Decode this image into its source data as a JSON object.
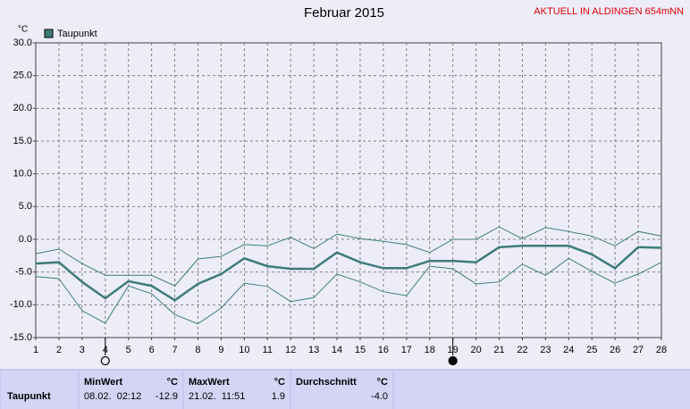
{
  "chart_data": {
    "type": "line",
    "title": "Februar 2015",
    "subtitle": "AKTUELL IN ALDINGEN 654mNN",
    "y_label": "°C",
    "x": [
      1,
      2,
      3,
      4,
      5,
      6,
      7,
      8,
      9,
      10,
      11,
      12,
      13,
      14,
      15,
      16,
      17,
      18,
      19,
      20,
      21,
      22,
      23,
      24,
      25,
      26,
      27,
      28
    ],
    "xlim": [
      1,
      28
    ],
    "xticks": [
      1,
      2,
      3,
      4,
      5,
      6,
      7,
      8,
      9,
      10,
      11,
      12,
      13,
      14,
      15,
      16,
      17,
      18,
      19,
      20,
      21,
      22,
      23,
      24,
      25,
      26,
      27,
      28
    ],
    "ylim": [
      -15,
      30
    ],
    "yticks": [
      {
        "value": -15,
        "label": "-15.0"
      },
      {
        "value": -10,
        "label": "-10.0"
      },
      {
        "value": -5,
        "label": "-5.0"
      },
      {
        "value": 0,
        "label": "0.0"
      },
      {
        "value": 5,
        "label": "5.0"
      },
      {
        "value": 10,
        "label": "10.0"
      },
      {
        "value": 15,
        "label": "15.0"
      },
      {
        "value": 20,
        "label": "20.0"
      },
      {
        "value": 25,
        "label": "25.0"
      },
      {
        "value": 30,
        "label": "30.0"
      }
    ],
    "grid": true,
    "series": [
      {
        "name": "Taupunkt",
        "color": "#3f7b7b",
        "width": 2.5,
        "values": [
          -3.7,
          -3.5,
          -6.5,
          -9.0,
          -6.4,
          -7.1,
          -9.3,
          -6.8,
          -5.3,
          -2.9,
          -4.1,
          -4.5,
          -4.5,
          -2.0,
          -3.5,
          -4.4,
          -4.4,
          -3.3,
          -3.3,
          -3.5,
          -1.2,
          -1.0,
          -1.0,
          -1.0,
          -2.3,
          -4.4,
          -1.2,
          -1.3
        ]
      },
      {
        "color": "#3f7b7b",
        "width": 1,
        "values": [
          -2.2,
          -1.5,
          -3.7,
          -5.5,
          -5.5,
          -5.5,
          -7.1,
          -3.0,
          -2.6,
          -0.8,
          -1.0,
          0.3,
          -1.4,
          0.8,
          0.1,
          -0.3,
          -0.8,
          -2.0,
          0.0,
          0.0,
          1.9,
          0.1,
          1.8,
          1.2,
          0.5,
          -1.0,
          1.2,
          0.5
        ]
      },
      {
        "color": "#3f7b7b",
        "width": 1,
        "values": [
          -5.7,
          -6.0,
          -10.9,
          -12.8,
          -7.1,
          -8.3,
          -11.5,
          -12.9,
          -10.5,
          -6.7,
          -7.2,
          -9.5,
          -8.9,
          -5.3,
          -6.5,
          -8.0,
          -8.6,
          -4.1,
          -4.5,
          -6.8,
          -6.5,
          -3.8,
          -5.5,
          -2.9,
          -4.9,
          -6.7,
          -5.3,
          -3.5
        ]
      }
    ],
    "moon_phases": [
      {
        "x": 4,
        "phase": "full"
      },
      {
        "x": 19,
        "phase": "new"
      }
    ]
  },
  "stats": {
    "columns": [
      {
        "title": "MinWert",
        "unit": "°C"
      },
      {
        "title": "MaxWert",
        "unit": "°C"
      },
      {
        "title": "Durchschnitt",
        "unit": "°C"
      }
    ],
    "rows": [
      {
        "label": "Taupunkt",
        "cells": [
          {
            "time": "08.02.  02:12",
            "value": "-12.9"
          },
          {
            "time": "21.02.  11:51",
            "value": "1.9"
          },
          {
            "value": "-4.0"
          }
        ]
      }
    ]
  }
}
